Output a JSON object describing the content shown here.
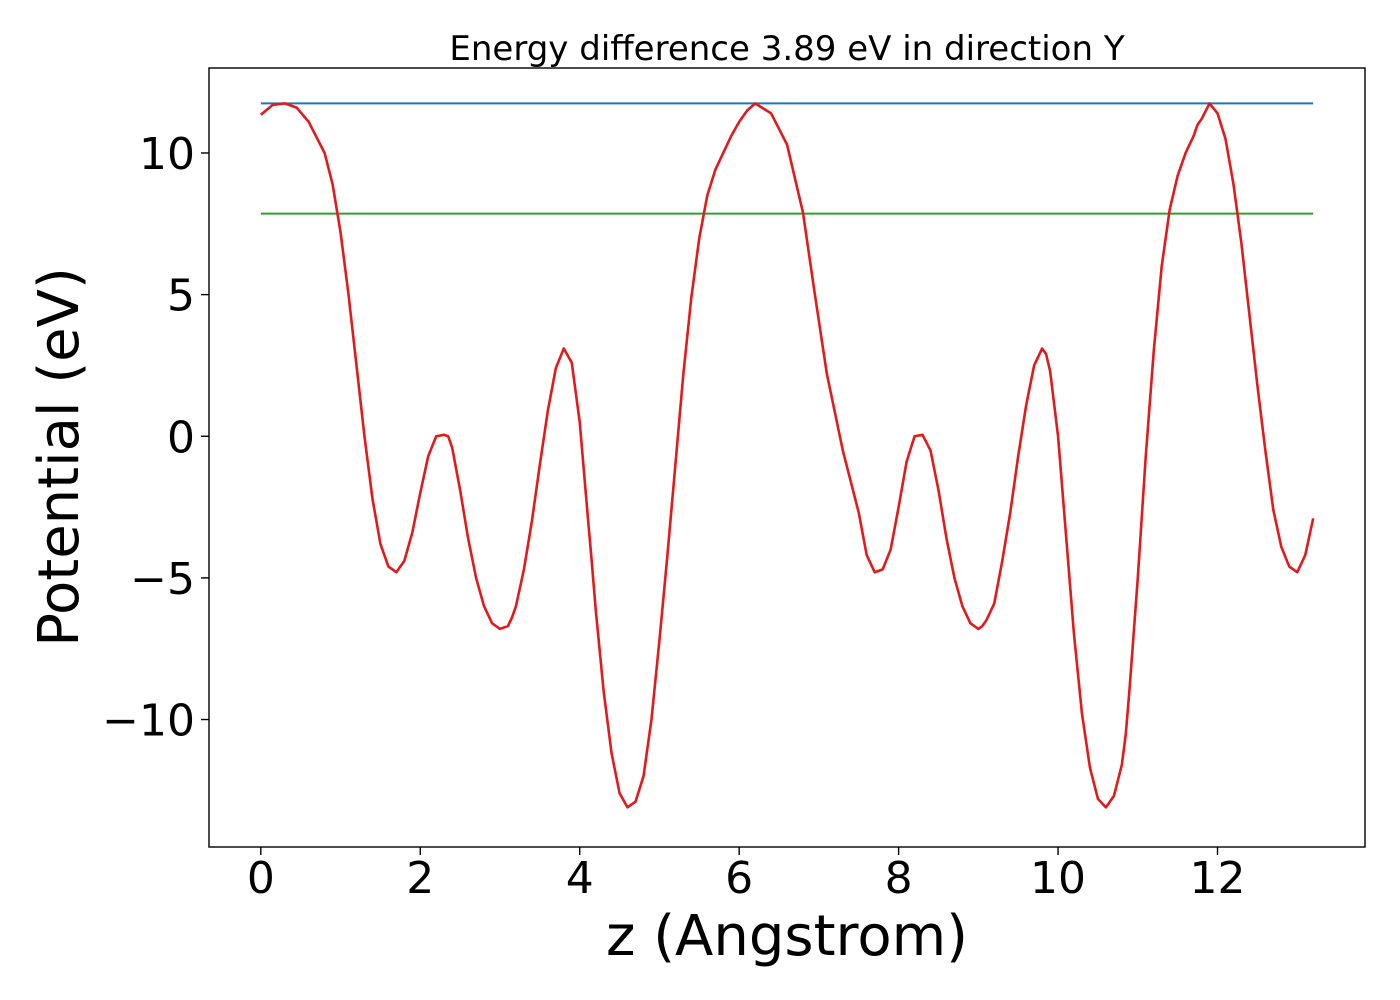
{
  "chart_data": {
    "type": "line",
    "title": "Energy difference 3.89 eV in direction Y",
    "xlabel": "z (Angstrom)",
    "ylabel": "Potential (eV)",
    "xlim": [
      -0.65,
      13.85
    ],
    "ylim": [
      -14.5,
      13.0
    ],
    "xticks": [
      0,
      2,
      4,
      6,
      8,
      10,
      12
    ],
    "yticks": [
      -10,
      -5,
      0,
      5,
      10
    ],
    "xtick_labels": [
      "0",
      "2",
      "4",
      "6",
      "8",
      "10",
      "12"
    ],
    "ytick_labels": [
      "−10",
      "−5",
      "0",
      "5",
      "10"
    ],
    "grid": false,
    "series": [
      {
        "color": "#1f77b4",
        "x": [
          0,
          13.2
        ],
        "y": [
          11.75,
          11.75
        ]
      },
      {
        "color": "#2ca02c",
        "x": [
          0,
          13.2
        ],
        "y": [
          7.86,
          7.86
        ]
      },
      {
        "color": "#e31a1c",
        "x": [
          0.0,
          0.15,
          0.3,
          0.45,
          0.6,
          0.8,
          0.9,
          1.0,
          1.1,
          1.2,
          1.3,
          1.4,
          1.5,
          1.6,
          1.7,
          1.8,
          1.9,
          2.0,
          2.1,
          2.2,
          2.3,
          2.35,
          2.4,
          2.5,
          2.6,
          2.7,
          2.8,
          2.9,
          3.0,
          3.1,
          3.15,
          3.2,
          3.3,
          3.4,
          3.5,
          3.6,
          3.7,
          3.8,
          3.9,
          4.0,
          4.1,
          4.15,
          4.2,
          4.3,
          4.4,
          4.5,
          4.6,
          4.7,
          4.8,
          4.9,
          5.0,
          5.05,
          5.1,
          5.2,
          5.3,
          5.4,
          5.5,
          5.6,
          5.7,
          5.8,
          5.9,
          6.0,
          6.1,
          6.2,
          6.4,
          6.6,
          6.8,
          6.95,
          7.1,
          7.3,
          7.5,
          7.6,
          7.7,
          7.8,
          7.9,
          8.0,
          8.1,
          8.2,
          8.3,
          8.4,
          8.5,
          8.6,
          8.7,
          8.8,
          8.9,
          9.0,
          9.05,
          9.1,
          9.2,
          9.3,
          9.4,
          9.5,
          9.6,
          9.7,
          9.8,
          9.85,
          9.9,
          10.0,
          10.1,
          10.2,
          10.3,
          10.4,
          10.5,
          10.6,
          10.7,
          10.8,
          10.85,
          10.9,
          11.0,
          11.1,
          11.2,
          11.3,
          11.4,
          11.5,
          11.6,
          11.7,
          11.75,
          11.8,
          11.9,
          12.0,
          12.1,
          12.2,
          12.3,
          12.4,
          12.5,
          12.6,
          12.7,
          12.8,
          12.9,
          13.0,
          13.1,
          13.2
        ],
        "y": [
          11.35,
          11.7,
          11.75,
          11.6,
          11.1,
          10.0,
          8.9,
          7.2,
          5.0,
          2.5,
          0.0,
          -2.2,
          -3.8,
          -4.6,
          -4.8,
          -4.4,
          -3.4,
          -2.0,
          -0.7,
          0.0,
          0.05,
          0.0,
          -0.4,
          -1.9,
          -3.6,
          -5.0,
          -6.0,
          -6.6,
          -6.8,
          -6.7,
          -6.4,
          -6.0,
          -4.7,
          -3.0,
          -1.0,
          0.9,
          2.4,
          3.1,
          2.6,
          0.5,
          -2.8,
          -4.4,
          -6.1,
          -9.0,
          -11.2,
          -12.6,
          -13.1,
          -12.9,
          -12.0,
          -10.0,
          -7.2,
          -5.7,
          -4.2,
          -1.0,
          2.2,
          4.9,
          7.0,
          8.5,
          9.4,
          10.0,
          10.6,
          11.1,
          11.5,
          11.75,
          11.4,
          10.3,
          7.9,
          5.0,
          2.2,
          -0.5,
          -2.7,
          -4.2,
          -4.8,
          -4.7,
          -4.0,
          -2.5,
          -0.9,
          0.0,
          0.05,
          -0.5,
          -1.9,
          -3.6,
          -5.0,
          -6.0,
          -6.6,
          -6.8,
          -6.7,
          -6.5,
          -5.9,
          -4.4,
          -2.7,
          -0.7,
          1.1,
          2.5,
          3.1,
          2.9,
          2.3,
          0.0,
          -3.5,
          -7.0,
          -9.8,
          -11.7,
          -12.8,
          -13.1,
          -12.7,
          -11.6,
          -10.5,
          -8.8,
          -5.0,
          -0.7,
          3.0,
          6.0,
          8.0,
          9.2,
          10.0,
          10.6,
          11.0,
          11.2,
          11.75,
          11.4,
          10.5,
          8.9,
          6.8,
          4.3,
          1.8,
          -0.5,
          -2.6,
          -3.9,
          -4.6,
          -4.8,
          -4.2,
          -2.9
        ]
      }
    ]
  }
}
